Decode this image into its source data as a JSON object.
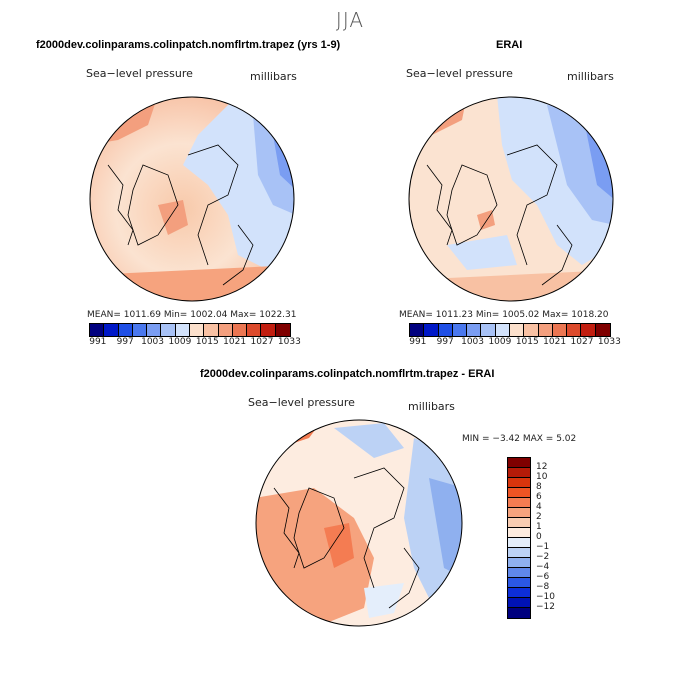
{
  "title": "JJA",
  "panel1": {
    "title": "f2000dev.colinparams.colinpatch.nomflrtm.trapez (yrs 1-9)",
    "var_label": "Sea−level pressure",
    "units": "millibars",
    "stats": "MEAN= 1011.69   Min= 1002.04   Max= 1022.31"
  },
  "panel2": {
    "title": "ERAI",
    "var_label": "Sea−level pressure",
    "units": "millibars",
    "stats": "MEAN= 1011.23   Min= 1005.02   Max= 1018.20"
  },
  "panel3": {
    "title": "f2000dev.colinparams.colinpatch.nomflrtm.trapez - ERAI",
    "var_label": "Sea−level pressure",
    "units": "millibars",
    "stats": "MIN =   −3.42  MAX =    5.02"
  },
  "colorbar_abs": {
    "colors": [
      "#00007f",
      "#0018c8",
      "#1f4fe6",
      "#4a78ee",
      "#7a9df2",
      "#a8c2f6",
      "#d2e2fb",
      "#fbe0cc",
      "#f8c1a3",
      "#f39f7e",
      "#eb7652",
      "#dc4a2c",
      "#c21e10",
      "#7f0000"
    ],
    "ticks": [
      "991",
      "997",
      "1003",
      "1009",
      "1015",
      "1021",
      "1027",
      "1033"
    ]
  },
  "colorbar_diff": {
    "colors": [
      "#7f0000",
      "#b51b08",
      "#d8350d",
      "#ee5424",
      "#f47c52",
      "#f6a37e",
      "#f9cdb2",
      "#fdece0",
      "#e4eefb",
      "#bcd2f5",
      "#8fb0ef",
      "#5f87ea",
      "#2b57e4",
      "#0d2ed8",
      "#0012b5",
      "#00007f"
    ],
    "ticks": [
      "12",
      "10",
      "8",
      "6",
      "4",
      "2",
      "1",
      "0",
      "−1",
      "−2",
      "−4",
      "−6",
      "−8",
      "−10",
      "−12"
    ]
  }
}
